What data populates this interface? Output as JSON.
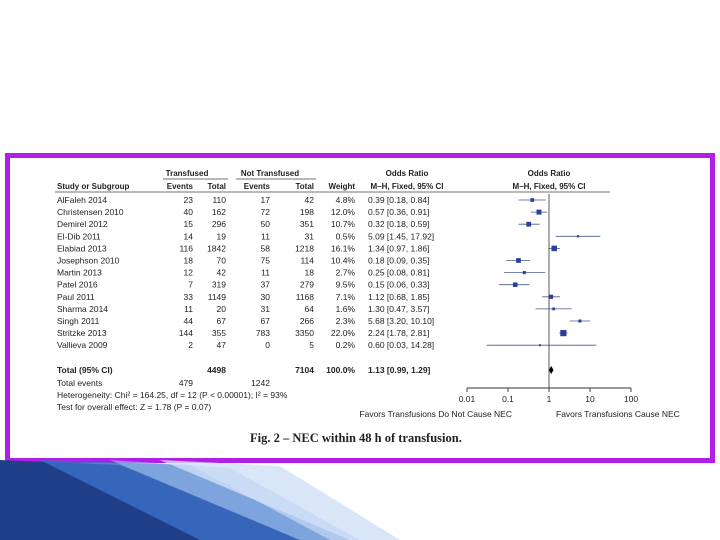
{
  "chart_data": {
    "type": "forest",
    "caption": "Fig. 2 – NEC within 48 h of transfusion.",
    "column_headers": {
      "group_transfused": "Transfused",
      "group_not_transfused": "Not Transfused",
      "study": "Study or Subgroup",
      "events": "Events",
      "total": "Total",
      "weight": "Weight",
      "or_text_title": "Odds Ratio",
      "or_text_sub": "M–H, Fixed, 95% CI",
      "or_plot_title": "Odds Ratio",
      "or_plot_sub": "M–H, Fixed, 95% CI"
    },
    "studies": [
      {
        "study": "AlFaleh 2014",
        "t_events": "23",
        "t_total": "110",
        "n_events": "17",
        "n_total": "42",
        "weight": "4.8%",
        "or_text": "0.39 [0.18, 0.84]",
        "or": 0.39,
        "lo": 0.18,
        "hi": 0.84
      },
      {
        "study": "Christensen 2010",
        "t_events": "40",
        "t_total": "162",
        "n_events": "72",
        "n_total": "198",
        "weight": "12.0%",
        "or_text": "0.57 [0.36, 0.91]",
        "or": 0.57,
        "lo": 0.36,
        "hi": 0.91
      },
      {
        "study": "Demirel 2012",
        "t_events": "15",
        "t_total": "296",
        "n_events": "50",
        "n_total": "351",
        "weight": "10.7%",
        "or_text": "0.32 [0.18, 0.59]",
        "or": 0.32,
        "lo": 0.18,
        "hi": 0.59
      },
      {
        "study": "El-Dib 2011",
        "t_events": "14",
        "t_total": "19",
        "n_events": "11",
        "n_total": "31",
        "weight": "0.5%",
        "or_text": "5.09 [1.45, 17.92]",
        "or": 5.09,
        "lo": 1.45,
        "hi": 17.92
      },
      {
        "study": "Elabiad 2013",
        "t_events": "116",
        "t_total": "1842",
        "n_events": "58",
        "n_total": "1218",
        "weight": "16.1%",
        "or_text": "1.34 [0.97, 1.86]",
        "or": 1.34,
        "lo": 0.97,
        "hi": 1.86
      },
      {
        "study": "Josephson 2010",
        "t_events": "18",
        "t_total": "70",
        "n_events": "75",
        "n_total": "114",
        "weight": "10.4%",
        "or_text": "0.18 [0.09, 0.35]",
        "or": 0.18,
        "lo": 0.09,
        "hi": 0.35
      },
      {
        "study": "Martin 2013",
        "t_events": "12",
        "t_total": "42",
        "n_events": "11",
        "n_total": "18",
        "weight": "2.7%",
        "or_text": "0.25 [0.08, 0.81]",
        "or": 0.25,
        "lo": 0.08,
        "hi": 0.81
      },
      {
        "study": "Patel 2016",
        "t_events": "7",
        "t_total": "319",
        "n_events": "37",
        "n_total": "279",
        "weight": "9.5%",
        "or_text": "0.15 [0.06, 0.33]",
        "or": 0.15,
        "lo": 0.06,
        "hi": 0.33
      },
      {
        "study": "Paul 2011",
        "t_events": "33",
        "t_total": "1149",
        "n_events": "30",
        "n_total": "1168",
        "weight": "7.1%",
        "or_text": "1.12 [0.68, 1.85]",
        "or": 1.12,
        "lo": 0.68,
        "hi": 1.85
      },
      {
        "study": "Sharma 2014",
        "t_events": "11",
        "t_total": "20",
        "n_events": "31",
        "n_total": "64",
        "weight": "1.6%",
        "or_text": "1.30 [0.47, 3.57]",
        "or": 1.3,
        "lo": 0.47,
        "hi": 3.57
      },
      {
        "study": "Singh 2011",
        "t_events": "44",
        "t_total": "67",
        "n_events": "67",
        "n_total": "266",
        "weight": "2.3%",
        "or_text": "5.68 [3.20, 10.10]",
        "or": 5.68,
        "lo": 3.2,
        "hi": 10.1
      },
      {
        "study": "Stritzke 2013",
        "t_events": "144",
        "t_total": "355",
        "n_events": "783",
        "n_total": "3350",
        "weight": "22.0%",
        "or_text": "2.24 [1.78, 2.81]",
        "or": 2.24,
        "lo": 1.78,
        "hi": 2.81
      },
      {
        "study": "Vallieva 2009",
        "t_events": "2",
        "t_total": "47",
        "n_events": "0",
        "n_total": "5",
        "weight": "0.2%",
        "or_text": "0.60 [0.03, 14.28]",
        "or": 0.6,
        "lo": 0.03,
        "hi": 14.28
      }
    ],
    "total": {
      "label": "Total (95% CI)",
      "t_total": "4498",
      "n_total": "7104",
      "weight": "100.0%",
      "or_text": "1.13 [0.99, 1.29]",
      "or": 1.13,
      "lo": 0.99,
      "hi": 1.29
    },
    "total_events": {
      "label": "Total events",
      "t_events": "479",
      "n_events": "1242"
    },
    "heterogeneity": "Heterogeneity: Chi² = 164.25, df = 12 (P < 0.00001); I² = 93%",
    "overall_effect": "Test for overall effect: Z = 1.78 (P = 0.07)",
    "x_axis": {
      "scale": "log",
      "ticks": [
        0.01,
        0.1,
        1,
        10,
        100
      ],
      "tick_labels": [
        "0.01",
        "0.1",
        "1",
        "10",
        "100"
      ],
      "range": [
        0.01,
        100
      ]
    },
    "favors_left": "Favors Transfusions Do Not Cause NEC",
    "favors_right": "Favors Transfusions Cause NEC",
    "colors": {
      "marker": "#2a3f9a",
      "line": "#4a5a8a",
      "frame": "#b31ee6"
    }
  }
}
